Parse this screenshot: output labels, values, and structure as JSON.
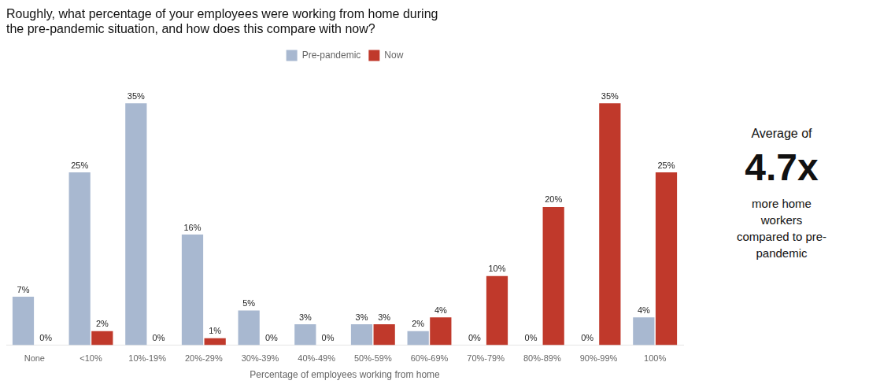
{
  "chart_data": {
    "type": "bar",
    "title": [
      "Roughly, what percentage of your employees were working from home during",
      "the pre-pandemic situation, and how does this compare with now?"
    ],
    "categories": [
      "None",
      "<10%",
      "10%-19%",
      "20%-29%",
      "30%-39%",
      "40%-49%",
      "50%-59%",
      "60%-69%",
      "70%-79%",
      "80%-89%",
      "90%-99%",
      "100%"
    ],
    "series": [
      {
        "name": "Pre-pandemic",
        "color": "#a8b8d0",
        "values": [
          7,
          25,
          35,
          16,
          5,
          3,
          3,
          2,
          0,
          0,
          0,
          4
        ],
        "value_labels": [
          "7%",
          "25%",
          "35%",
          "16%",
          "5%",
          "3%",
          "3%",
          "2%",
          "0%",
          "0%",
          "0%",
          "4%"
        ]
      },
      {
        "name": "Now",
        "color": "#c0392b",
        "values": [
          0,
          2,
          0,
          1,
          0,
          0,
          3,
          4,
          10,
          20,
          35,
          25
        ],
        "value_labels": [
          "0%",
          "2%",
          "0%",
          "1%",
          "0%",
          "0%",
          "3%",
          "4%",
          "10%",
          "20%",
          "35%",
          "25%"
        ]
      }
    ],
    "xlabel": "Percentage of employees working from home",
    "ylim": [
      0,
      40
    ],
    "tick_labels": "x",
    "grid": false,
    "legend": "top",
    "data_labels": true,
    "annotations": [
      "Average of",
      "4.7x",
      "more home\nworkers\ncompared to pre-\npandemic"
    ]
  }
}
